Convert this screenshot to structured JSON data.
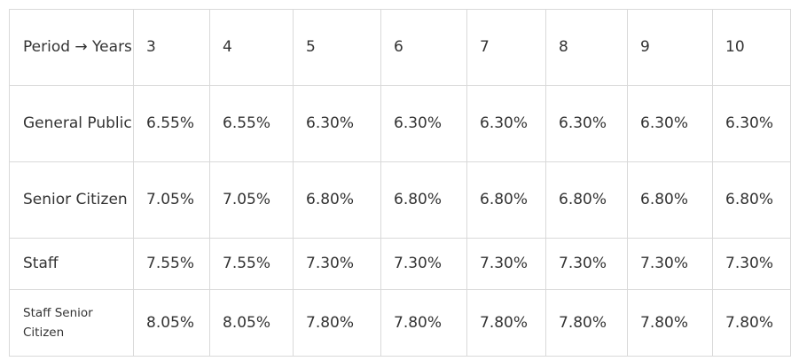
{
  "table": {
    "header": {
      "label": "Period → Years",
      "columns": [
        "3",
        "4",
        "5",
        "6",
        "7",
        "8",
        "9",
        "10"
      ]
    },
    "rows": [
      {
        "label": "General Public",
        "values": [
          "6.55%",
          "6.55%",
          "6.30%",
          "6.30%",
          "6.30%",
          "6.30%",
          "6.30%",
          "6.30%"
        ]
      },
      {
        "label": "Senior Citizen",
        "values": [
          "7.05%",
          "7.05%",
          "6.80%",
          "6.80%",
          "6.80%",
          "6.80%",
          "6.80%",
          "6.80%"
        ]
      },
      {
        "label": "Staff",
        "values": [
          "7.55%",
          "7.55%",
          "7.30%",
          "7.30%",
          "7.30%",
          "7.30%",
          "7.30%",
          "7.30%"
        ]
      },
      {
        "label": "Staff Senior Citizen",
        "values": [
          "8.05%",
          "8.05%",
          "7.80%",
          "7.80%",
          "7.80%",
          "7.80%",
          "7.80%",
          "7.80%"
        ]
      }
    ]
  }
}
